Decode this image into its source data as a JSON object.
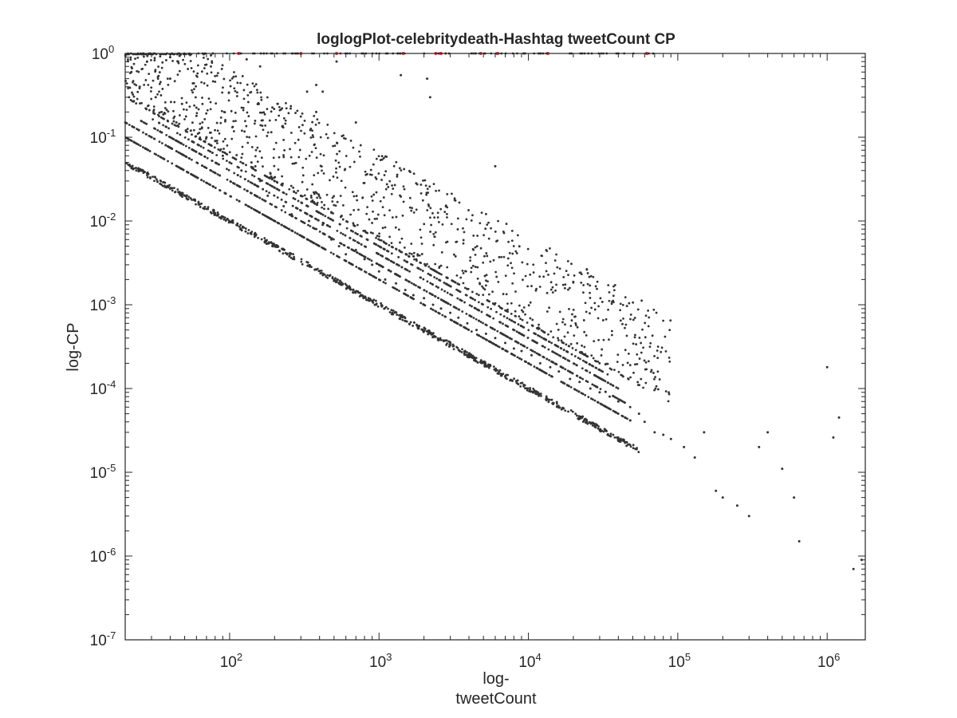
{
  "chart_data": {
    "type": "scatter",
    "title": "loglogPlot-celebritydeath-Hashtag tweetCount CP",
    "xlabel_lines": [
      "log-",
      "tweetCount"
    ],
    "ylabel": "log-CP",
    "xscale": "log",
    "yscale": "log",
    "xlim": [
      20,
      1800000
    ],
    "ylim": [
      1e-07,
      1
    ],
    "grid": false,
    "box": true,
    "x_ticks": [
      {
        "base": "10",
        "exp": "2"
      },
      {
        "base": "10",
        "exp": "3"
      },
      {
        "base": "10",
        "exp": "4"
      },
      {
        "base": "10",
        "exp": "5"
      },
      {
        "base": "10",
        "exp": "6"
      }
    ],
    "y_ticks": [
      {
        "base": "10",
        "exp": "-7"
      },
      {
        "base": "10",
        "exp": "-6"
      },
      {
        "base": "10",
        "exp": "-5"
      },
      {
        "base": "10",
        "exp": "-4"
      },
      {
        "base": "10",
        "exp": "-3"
      },
      {
        "base": "10",
        "exp": "-2"
      },
      {
        "base": "10",
        "exp": "-1"
      },
      {
        "base": "10",
        "exp": "0"
      }
    ],
    "colors": {
      "points": "#333333",
      "highlight": "#e8302a",
      "axes": "#262626"
    },
    "series": [
      {
        "color": "#333333",
        "description_bands": [
          {
            "numerator": 1,
            "x_range": [
              20,
              55000
            ]
          },
          {
            "numerator": 2,
            "x_range": [
              20,
              50000
            ]
          },
          {
            "numerator": 3,
            "x_range": [
              20,
              45000
            ]
          },
          {
            "numerator": 4,
            "x_range": [
              25,
              40000
            ]
          },
          {
            "numerator": 5,
            "x_range": [
              30,
              35000
            ]
          },
          {
            "numerator": 6,
            "x_range": [
              30,
              30000
            ]
          }
        ],
        "x": [
          22,
          25,
          28,
          32,
          35,
          40,
          44,
          48,
          55,
          60,
          70,
          80,
          90,
          100,
          120,
          140,
          160,
          180,
          200,
          230,
          260,
          300,
          340,
          380,
          420,
          480,
          540,
          600,
          700,
          800,
          900,
          1000,
          1100,
          1300,
          1500,
          1700,
          2000,
          2300,
          2600,
          3000,
          3400,
          3900,
          4500,
          5200,
          6000,
          7000,
          8000,
          9000,
          10500,
          12000,
          14000,
          16000,
          19000,
          22000,
          26000,
          30000,
          35000,
          40000,
          48000,
          55000,
          60000,
          70000,
          80000,
          90000,
          110000,
          130000,
          150000,
          180000,
          200000,
          250000,
          300000,
          350000,
          400000,
          500000,
          600000,
          650000,
          1000000,
          1100000,
          1200000,
          1500000,
          1700000,
          40,
          75,
          130,
          380,
          420,
          1400,
          2100,
          2200,
          6000,
          210,
          160,
          380,
          330,
          520,
          700,
          260
        ],
        "y": [
          0.6,
          0.4,
          0.8,
          0.3,
          0.2,
          0.5,
          0.15,
          0.25,
          0.12,
          0.18,
          0.1,
          0.09,
          0.06,
          0.05,
          0.04,
          0.05,
          0.03,
          0.02,
          0.025,
          0.015,
          0.012,
          0.02,
          0.01,
          0.008,
          0.009,
          0.006,
          0.005,
          0.004,
          0.0045,
          0.0035,
          0.003,
          0.0025,
          0.002,
          0.0018,
          0.0015,
          0.0013,
          0.0012,
          0.001,
          0.0009,
          0.0008,
          0.0007,
          0.0006,
          0.0005,
          0.00045,
          0.0004,
          0.00035,
          0.0003,
          0.00028,
          0.00025,
          0.0002,
          0.00018,
          0.00016,
          0.00013,
          0.00012,
          0.0001,
          9e-05,
          8e-05,
          7e-05,
          6e-05,
          5e-05,
          4e-05,
          3e-05,
          2.8e-05,
          2.5e-05,
          2e-05,
          1.5e-05,
          3e-05,
          6e-06,
          5e-06,
          4e-06,
          3e-06,
          2e-05,
          3e-05,
          1.1e-05,
          5e-06,
          1.5e-06,
          0.00018,
          2.6e-05,
          4.5e-05,
          7e-07,
          9e-07,
          0.9,
          0.95,
          0.85,
          0.42,
          0.35,
          0.55,
          0.5,
          0.3,
          0.045,
          0.25,
          0.7,
          0.2,
          0.35,
          0.8,
          0.15,
          0.012
        ]
      },
      {
        "color": "#e8302a",
        "x": [
          115,
          300,
          520,
          1450,
          2400,
          2600,
          4800,
          6200,
          13500,
          62000
        ],
        "y": [
          1,
          1,
          1,
          1,
          1,
          1,
          1,
          1,
          1,
          1
        ]
      }
    ]
  }
}
